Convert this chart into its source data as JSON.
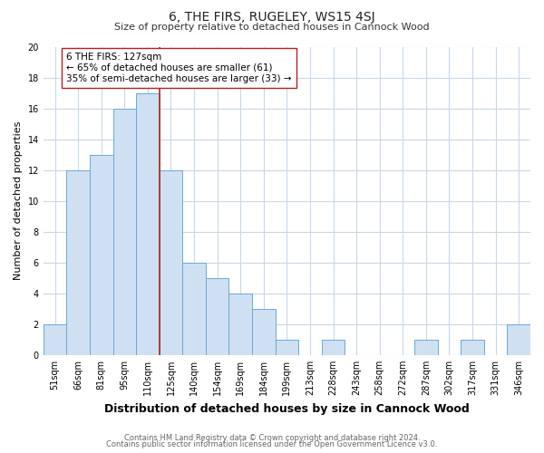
{
  "title": "6, THE FIRS, RUGELEY, WS15 4SJ",
  "subtitle": "Size of property relative to detached houses in Cannock Wood",
  "xlabel": "Distribution of detached houses by size in Cannock Wood",
  "ylabel": "Number of detached properties",
  "bin_labels": [
    "51sqm",
    "66sqm",
    "81sqm",
    "95sqm",
    "110sqm",
    "125sqm",
    "140sqm",
    "154sqm",
    "169sqm",
    "184sqm",
    "199sqm",
    "213sqm",
    "228sqm",
    "243sqm",
    "258sqm",
    "272sqm",
    "287sqm",
    "302sqm",
    "317sqm",
    "331sqm",
    "346sqm"
  ],
  "bin_values": [
    2,
    12,
    13,
    16,
    17,
    12,
    6,
    5,
    4,
    3,
    1,
    0,
    1,
    0,
    0,
    0,
    1,
    0,
    1,
    0,
    2
  ],
  "bar_color": "#cfe0f2",
  "bar_edge_color": "#6aaad4",
  "vline_position": 4.5,
  "vline_color": "#b22222",
  "annotation_line1": "6 THE FIRS: 127sqm",
  "annotation_line2": "← 65% of detached houses are smaller (61)",
  "annotation_line3": "35% of semi-detached houses are larger (33) →",
  "annotation_box_edge_color": "#b22222",
  "annotation_fontsize": 7.5,
  "ylim": [
    0,
    20
  ],
  "yticks": [
    0,
    2,
    4,
    6,
    8,
    10,
    12,
    14,
    16,
    18,
    20
  ],
  "footer_line1": "Contains HM Land Registry data © Crown copyright and database right 2024.",
  "footer_line2": "Contains public sector information licensed under the Open Government Licence v3.0.",
  "background_color": "#ffffff",
  "grid_color": "#c8d8e8",
  "title_fontsize": 10,
  "subtitle_fontsize": 8,
  "xlabel_fontsize": 9,
  "ylabel_fontsize": 8,
  "tick_fontsize": 7,
  "footer_fontsize": 6,
  "footer_color": "#666666"
}
